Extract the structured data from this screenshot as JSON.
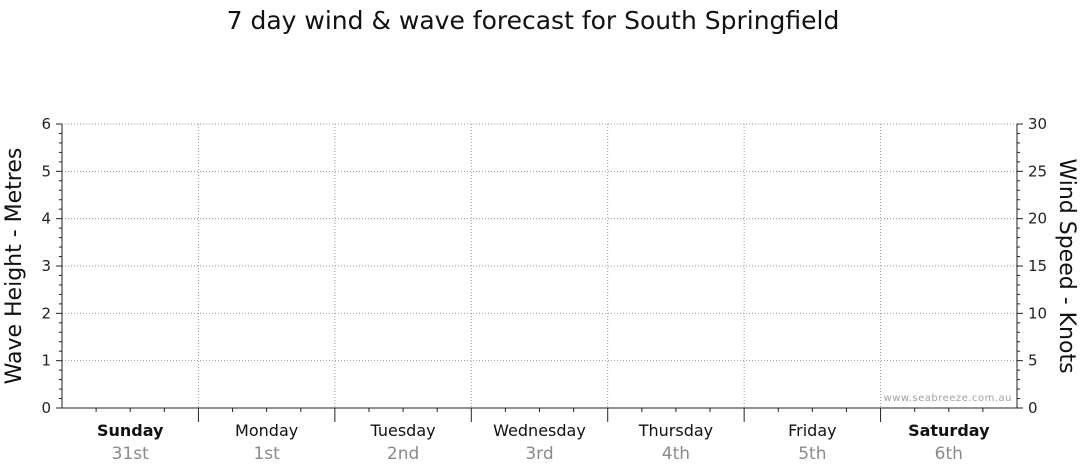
{
  "chart_data": {
    "type": "line",
    "title": "7 day wind & wave forecast for South Springfield",
    "ylabel_left": "Wave Height - Metres",
    "ylabel_right": "Wind Speed - Knots",
    "ylim_left": [
      0,
      6
    ],
    "yticks_left": [
      "0",
      "1",
      "2",
      "3",
      "4",
      "5",
      "6"
    ],
    "ylim_right": [
      0,
      30
    ],
    "yticks_right": [
      "0",
      "5",
      "10",
      "15",
      "20",
      "25",
      "30"
    ],
    "days": [
      {
        "name": "Sunday",
        "date": "31st",
        "bold": true
      },
      {
        "name": "Monday",
        "date": "1st",
        "bold": false
      },
      {
        "name": "Tuesday",
        "date": "2nd",
        "bold": false
      },
      {
        "name": "Wednesday",
        "date": "3rd",
        "bold": false
      },
      {
        "name": "Thursday",
        "date": "4th",
        "bold": false
      },
      {
        "name": "Friday",
        "date": "5th",
        "bold": false
      },
      {
        "name": "Saturday",
        "date": "6th",
        "bold": true
      }
    ],
    "series": [],
    "grid": true,
    "watermark": "www.seabreeze.com.au"
  }
}
